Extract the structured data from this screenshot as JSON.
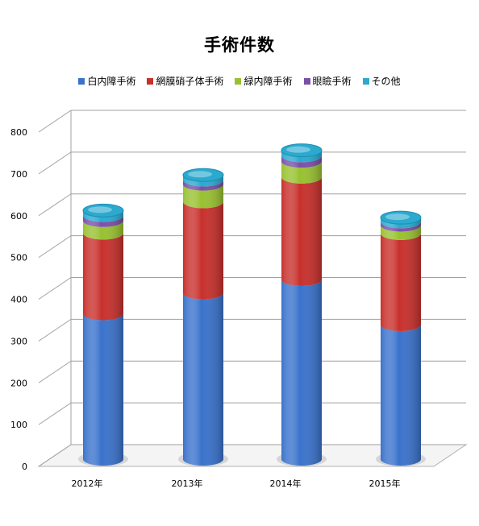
{
  "chart_data": {
    "type": "bar",
    "stacked": true,
    "title": "手術件数",
    "categories": [
      "2012年",
      "2013年",
      "2014年",
      "2015年"
    ],
    "series": [
      {
        "name": "白内障手術",
        "color": "#3a72cc",
        "values": [
          348,
          398,
          430,
          322
        ]
      },
      {
        "name": "網膜硝子体手術",
        "color": "#c8302c",
        "values": [
          193,
          218,
          245,
          218
        ]
      },
      {
        "name": "緑内障手術",
        "color": "#98c130",
        "values": [
          30,
          42,
          38,
          20
        ]
      },
      {
        "name": "眼瞼手術",
        "color": "#7a4fa8",
        "values": [
          12,
          10,
          13,
          8
        ]
      },
      {
        "name": "その他",
        "color": "#2ba9cf",
        "values": [
          12,
          12,
          13,
          10
        ]
      }
    ],
    "y_ticks": [
      "0",
      "100",
      "200",
      "300",
      "400",
      "500",
      "600",
      "700",
      "800"
    ],
    "ylim": [
      0,
      800
    ],
    "grid": true,
    "legend_position": "top"
  }
}
